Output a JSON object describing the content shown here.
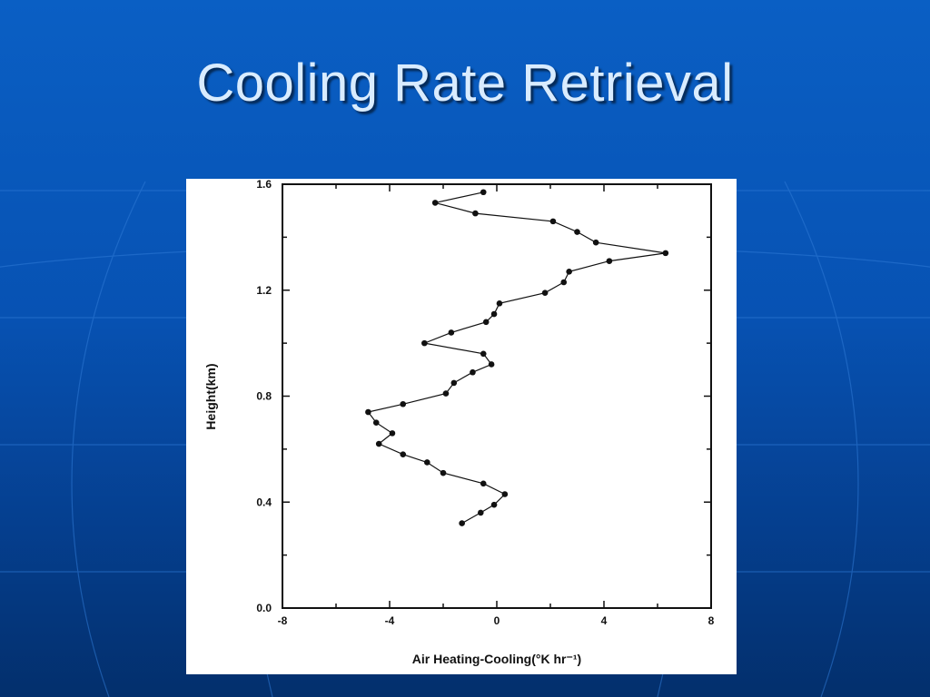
{
  "slide": {
    "title": "Cooling Rate Retrieval",
    "colors": {
      "background": "#0757b8",
      "title": "#d9ecff",
      "grid_lines": "#2f7ad6"
    }
  },
  "chart_data": {
    "type": "line",
    "title": "",
    "xlabel": "Air Heating-Cooling(°K hr⁻¹)",
    "ylabel": "Height(km)",
    "xlim": [
      -8,
      8
    ],
    "ylim": [
      0.0,
      1.6
    ],
    "xticks": [
      -8,
      -4,
      0,
      4,
      8
    ],
    "xtick_labels": [
      "-8",
      "-4",
      "0",
      "4",
      "8"
    ],
    "yticks": [
      0.0,
      0.4,
      0.8,
      1.2,
      1.6
    ],
    "ytick_labels": [
      "0.0",
      "0.4",
      "0.8",
      "1.2",
      "1.6"
    ],
    "grid": false,
    "markers": true,
    "series": [
      {
        "x": [
          -1.3,
          -0.6,
          -0.1,
          0.3,
          -0.5,
          -2.0,
          -2.6,
          -3.5,
          -4.4,
          -3.9,
          -4.5,
          -4.8,
          -3.5,
          -1.9,
          -1.6,
          -0.9,
          -0.2,
          -0.5,
          -2.7,
          -1.7,
          -0.4,
          -0.1,
          0.1,
          1.8,
          2.5,
          2.7,
          4.2,
          6.3,
          3.7,
          3.0,
          2.1,
          -0.8,
          -2.3,
          -0.5
        ],
        "y": [
          0.32,
          0.36,
          0.39,
          0.43,
          0.47,
          0.51,
          0.55,
          0.58,
          0.62,
          0.66,
          0.7,
          0.74,
          0.77,
          0.81,
          0.85,
          0.89,
          0.92,
          0.96,
          1.0,
          1.04,
          1.08,
          1.11,
          1.15,
          1.19,
          1.23,
          1.27,
          1.31,
          1.34,
          1.38,
          1.42,
          1.46,
          1.49,
          1.53,
          1.57
        ]
      }
    ]
  }
}
